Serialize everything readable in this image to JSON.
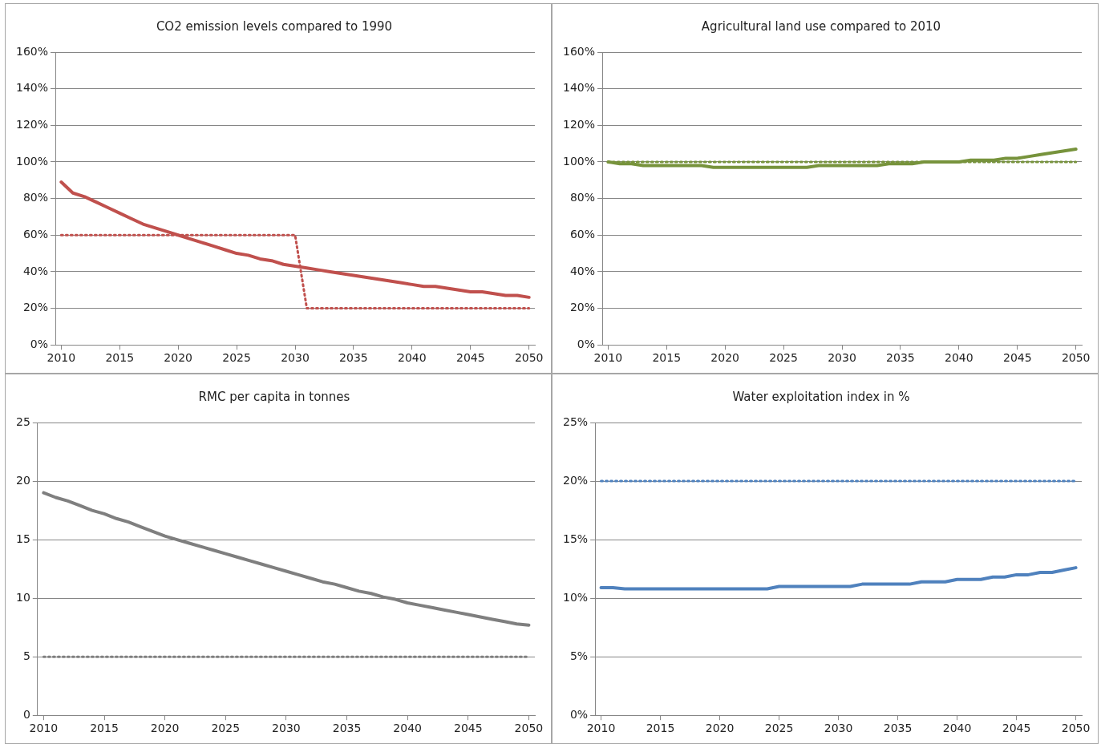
{
  "chart_data": [
    {
      "type": "line",
      "title": "CO2 emission levels compared to 1990",
      "x": [
        2010,
        2011,
        2012,
        2013,
        2014,
        2015,
        2016,
        2017,
        2018,
        2019,
        2020,
        2021,
        2022,
        2023,
        2024,
        2025,
        2026,
        2027,
        2028,
        2029,
        2030,
        2031,
        2032,
        2033,
        2034,
        2035,
        2036,
        2037,
        2038,
        2039,
        2040,
        2041,
        2042,
        2043,
        2044,
        2045,
        2046,
        2047,
        2048,
        2049,
        2050
      ],
      "series": [
        {
          "color": "#c0504d",
          "line_style": "solid",
          "values": [
            89,
            83,
            81,
            78,
            75,
            72,
            69,
            66,
            64,
            62,
            60,
            58,
            56,
            54,
            52,
            50,
            49,
            47,
            46,
            44,
            43,
            42,
            41,
            40,
            39,
            38,
            37,
            36,
            35,
            34,
            33,
            32,
            32,
            31,
            30,
            29,
            29,
            28,
            27,
            27,
            26
          ]
        },
        {
          "color": "#c0504d",
          "line_style": "dotted",
          "values": [
            60,
            60,
            60,
            60,
            60,
            60,
            60,
            60,
            60,
            60,
            60,
            60,
            60,
            60,
            60,
            60,
            60,
            60,
            60,
            60,
            60,
            20,
            20,
            20,
            20,
            20,
            20,
            20,
            20,
            20,
            20,
            20,
            20,
            20,
            20,
            20,
            20,
            20,
            20,
            20,
            20
          ]
        }
      ],
      "xlim": [
        2009.5,
        2050.5
      ],
      "xticks": [
        2010,
        2015,
        2020,
        2025,
        2030,
        2035,
        2040,
        2045,
        2050
      ],
      "ylim": [
        0,
        160
      ],
      "yticks": [
        {
          "value": 0,
          "label": "0%"
        },
        {
          "value": 20,
          "label": "20%"
        },
        {
          "value": 40,
          "label": "40%"
        },
        {
          "value": 60,
          "label": "60%"
        },
        {
          "value": 80,
          "label": "80%"
        },
        {
          "value": 100,
          "label": "100%"
        },
        {
          "value": 120,
          "label": "120%"
        },
        {
          "value": 140,
          "label": "140%"
        },
        {
          "value": 160,
          "label": "160%"
        }
      ],
      "grid": "y",
      "legend": false,
      "marker": "none"
    },
    {
      "type": "line",
      "title": "Agricultural land use compared to 2010",
      "x": [
        2010,
        2011,
        2012,
        2013,
        2014,
        2015,
        2016,
        2017,
        2018,
        2019,
        2020,
        2021,
        2022,
        2023,
        2024,
        2025,
        2026,
        2027,
        2028,
        2029,
        2030,
        2031,
        2032,
        2033,
        2034,
        2035,
        2036,
        2037,
        2038,
        2039,
        2040,
        2041,
        2042,
        2043,
        2044,
        2045,
        2046,
        2047,
        2048,
        2049,
        2050
      ],
      "series": [
        {
          "color": "#77933c",
          "line_style": "solid",
          "values": [
            100,
            99,
            99,
            98,
            98,
            98,
            98,
            98,
            98,
            97,
            97,
            97,
            97,
            97,
            97,
            97,
            97,
            97,
            98,
            98,
            98,
            98,
            98,
            98,
            99,
            99,
            99,
            100,
            100,
            100,
            100,
            101,
            101,
            101,
            102,
            102,
            103,
            104,
            105,
            106,
            107
          ]
        },
        {
          "color": "#77933c",
          "line_style": "dotted",
          "values": [
            100,
            100,
            100,
            100,
            100,
            100,
            100,
            100,
            100,
            100,
            100,
            100,
            100,
            100,
            100,
            100,
            100,
            100,
            100,
            100,
            100,
            100,
            100,
            100,
            100,
            100,
            100,
            100,
            100,
            100,
            100,
            100,
            100,
            100,
            100,
            100,
            100,
            100,
            100,
            100,
            100
          ]
        }
      ],
      "xlim": [
        2009.5,
        2050.5
      ],
      "xticks": [
        2010,
        2015,
        2020,
        2025,
        2030,
        2035,
        2040,
        2045,
        2050
      ],
      "ylim": [
        0,
        160
      ],
      "yticks": [
        {
          "value": 0,
          "label": "0%"
        },
        {
          "value": 20,
          "label": "20%"
        },
        {
          "value": 40,
          "label": "40%"
        },
        {
          "value": 60,
          "label": "60%"
        },
        {
          "value": 80,
          "label": "80%"
        },
        {
          "value": 100,
          "label": "100%"
        },
        {
          "value": 120,
          "label": "120%"
        },
        {
          "value": 140,
          "label": "140%"
        },
        {
          "value": 160,
          "label": "160%"
        }
      ],
      "grid": "y",
      "legend": false,
      "marker": "none"
    },
    {
      "type": "line",
      "title": "RMC per capita in tonnes",
      "x": [
        2010,
        2011,
        2012,
        2013,
        2014,
        2015,
        2016,
        2017,
        2018,
        2019,
        2020,
        2021,
        2022,
        2023,
        2024,
        2025,
        2026,
        2027,
        2028,
        2029,
        2030,
        2031,
        2032,
        2033,
        2034,
        2035,
        2036,
        2037,
        2038,
        2039,
        2040,
        2041,
        2042,
        2043,
        2044,
        2045,
        2046,
        2047,
        2048,
        2049,
        2050
      ],
      "series": [
        {
          "color": "#7f7f7f",
          "line_style": "solid",
          "values": [
            19.0,
            18.6,
            18.3,
            17.9,
            17.5,
            17.2,
            16.8,
            16.5,
            16.1,
            15.7,
            15.3,
            15.0,
            14.7,
            14.4,
            14.1,
            13.8,
            13.5,
            13.2,
            12.9,
            12.6,
            12.3,
            12.0,
            11.7,
            11.4,
            11.2,
            10.9,
            10.6,
            10.4,
            10.1,
            9.9,
            9.6,
            9.4,
            9.2,
            9.0,
            8.8,
            8.6,
            8.4,
            8.2,
            8.0,
            7.8,
            7.7
          ]
        },
        {
          "color": "#7f7f7f",
          "line_style": "dotted",
          "values": [
            5,
            5,
            5,
            5,
            5,
            5,
            5,
            5,
            5,
            5,
            5,
            5,
            5,
            5,
            5,
            5,
            5,
            5,
            5,
            5,
            5,
            5,
            5,
            5,
            5,
            5,
            5,
            5,
            5,
            5,
            5,
            5,
            5,
            5,
            5,
            5,
            5,
            5,
            5,
            5,
            5
          ]
        }
      ],
      "xlim": [
        2009.5,
        2050.5
      ],
      "xticks": [
        2010,
        2015,
        2020,
        2025,
        2030,
        2035,
        2040,
        2045,
        2050
      ],
      "ylim": [
        0,
        25
      ],
      "yticks": [
        0,
        5,
        10,
        15,
        20,
        25
      ],
      "grid": "y",
      "legend": false,
      "marker": "none"
    },
    {
      "type": "line",
      "title": "Water exploitation index in %",
      "x": [
        2010,
        2011,
        2012,
        2013,
        2014,
        2015,
        2016,
        2017,
        2018,
        2019,
        2020,
        2021,
        2022,
        2023,
        2024,
        2025,
        2026,
        2027,
        2028,
        2029,
        2030,
        2031,
        2032,
        2033,
        2034,
        2035,
        2036,
        2037,
        2038,
        2039,
        2040,
        2041,
        2042,
        2043,
        2044,
        2045,
        2046,
        2047,
        2048,
        2049,
        2050
      ],
      "series": [
        {
          "color": "#4f81bd",
          "line_style": "solid",
          "values": [
            10.9,
            10.9,
            10.8,
            10.8,
            10.8,
            10.8,
            10.8,
            10.8,
            10.8,
            10.8,
            10.8,
            10.8,
            10.8,
            10.8,
            10.8,
            11.0,
            11.0,
            11.0,
            11.0,
            11.0,
            11.0,
            11.0,
            11.2,
            11.2,
            11.2,
            11.2,
            11.2,
            11.4,
            11.4,
            11.4,
            11.6,
            11.6,
            11.6,
            11.8,
            11.8,
            12.0,
            12.0,
            12.2,
            12.2,
            12.4,
            12.6
          ]
        },
        {
          "color": "#4f81bd",
          "line_style": "dotted",
          "values": [
            20,
            20,
            20,
            20,
            20,
            20,
            20,
            20,
            20,
            20,
            20,
            20,
            20,
            20,
            20,
            20,
            20,
            20,
            20,
            20,
            20,
            20,
            20,
            20,
            20,
            20,
            20,
            20,
            20,
            20,
            20,
            20,
            20,
            20,
            20,
            20,
            20,
            20,
            20,
            20,
            20
          ]
        }
      ],
      "xlim": [
        2009.5,
        2050.5
      ],
      "xticks": [
        2010,
        2015,
        2020,
        2025,
        2030,
        2035,
        2040,
        2045,
        2050
      ],
      "ylim": [
        0,
        25
      ],
      "yticks": [
        {
          "value": 0,
          "label": "0%"
        },
        {
          "value": 5,
          "label": "5%"
        },
        {
          "value": 10,
          "label": "10%"
        },
        {
          "value": 15,
          "label": "15%"
        },
        {
          "value": 20,
          "label": "20%"
        },
        {
          "value": 25,
          "label": "25%"
        }
      ],
      "grid": "y",
      "legend": false,
      "marker": "none"
    }
  ]
}
